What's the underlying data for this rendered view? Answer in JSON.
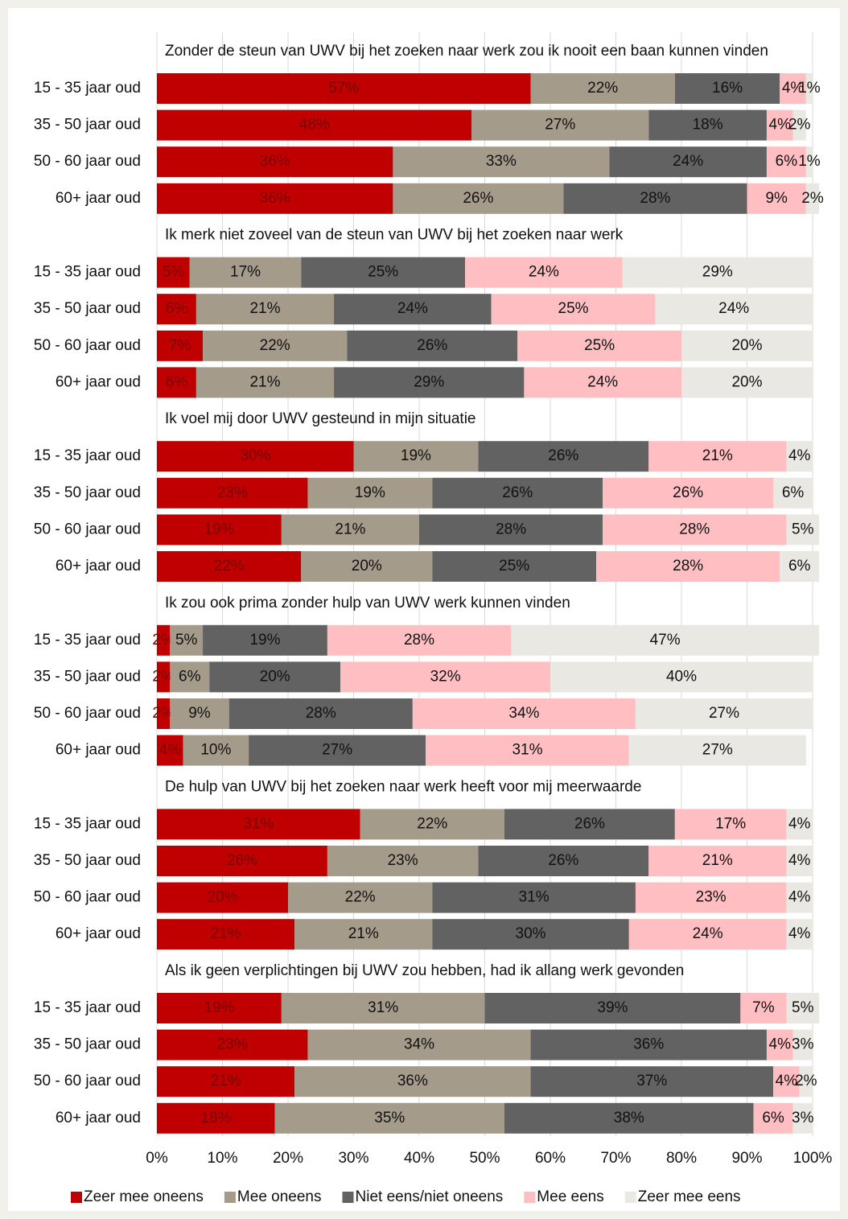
{
  "chart_data": {
    "type": "bar",
    "orientation": "horizontal",
    "stacked": true,
    "xlim": [
      0,
      100
    ],
    "xticks": [
      {
        "value": 0,
        "label": "0%"
      },
      {
        "value": 10,
        "label": "10%"
      },
      {
        "value": 20,
        "label": "20%"
      },
      {
        "value": 30,
        "label": "30%"
      },
      {
        "value": 40,
        "label": "40%"
      },
      {
        "value": 50,
        "label": "50%"
      },
      {
        "value": 60,
        "label": "60%"
      },
      {
        "value": 70,
        "label": "70%"
      },
      {
        "value": 80,
        "label": "80%"
      },
      {
        "value": 90,
        "label": "90%"
      },
      {
        "value": 100,
        "label": "100%"
      }
    ],
    "grid": true,
    "legend": "bottom",
    "series": [
      {
        "name": "Zeer mee oneens",
        "color": "#c00000"
      },
      {
        "name": "Mee oneens",
        "color": "#a59b8a"
      },
      {
        "name": "Niet eens/niet oneens",
        "color": "#626262"
      },
      {
        "name": "Mee eens",
        "color": "#ffbfc2"
      },
      {
        "name": "Zeer mee eens",
        "color": "#eae8e3"
      }
    ],
    "panels": [
      {
        "title": "Zonder de steun van UWV bij het zoeken naar werk zou ik nooit een baan kunnen vinden",
        "categories": [
          "15 - 35 jaar oud",
          "35 - 50 jaar oud",
          "50 - 60 jaar oud",
          "60+ jaar oud"
        ],
        "values": [
          [
            57,
            22,
            16,
            4,
            1
          ],
          [
            48,
            27,
            18,
            4,
            2
          ],
          [
            36,
            33,
            24,
            6,
            1
          ],
          [
            36,
            26,
            28,
            9,
            2
          ]
        ],
        "value_labels": [
          [
            "57%",
            "22%",
            "16%",
            "4%",
            "1%"
          ],
          [
            "48%",
            "27%",
            "18%",
            "4%",
            "2%"
          ],
          [
            "36%",
            "33%",
            "24%",
            "6%",
            "1%"
          ],
          [
            "36%",
            "26%",
            "28%",
            "9%",
            "2%"
          ]
        ]
      },
      {
        "title": "Ik merk niet zoveel van de steun van UWV bij het zoeken naar werk",
        "categories": [
          "15 - 35 jaar oud",
          "35 - 50 jaar oud",
          "50 - 60 jaar oud",
          "60+ jaar oud"
        ],
        "values": [
          [
            5,
            17,
            25,
            24,
            29
          ],
          [
            6,
            21,
            24,
            25,
            24
          ],
          [
            7,
            22,
            26,
            25,
            20
          ],
          [
            6,
            21,
            29,
            24,
            20
          ]
        ],
        "value_labels": [
          [
            "5%",
            "17%",
            "25%",
            "24%",
            "29%"
          ],
          [
            "6%",
            "21%",
            "24%",
            "25%",
            "24%"
          ],
          [
            "7%",
            "22%",
            "26%",
            "25%",
            "20%"
          ],
          [
            "6%",
            "21%",
            "29%",
            "24%",
            "20%"
          ]
        ]
      },
      {
        "title": "Ik voel mij door UWV gesteund in mijn situatie",
        "categories": [
          "15 - 35 jaar oud",
          "35 - 50 jaar oud",
          "50 - 60 jaar oud",
          "60+ jaar oud"
        ],
        "values": [
          [
            30,
            19,
            26,
            21,
            4
          ],
          [
            23,
            19,
            26,
            26,
            6
          ],
          [
            19,
            21,
            28,
            28,
            5
          ],
          [
            22,
            20,
            25,
            28,
            6
          ]
        ],
        "value_labels": [
          [
            "30%",
            "19%",
            "26%",
            "21%",
            "4%"
          ],
          [
            "23%",
            "19%",
            "26%",
            "26%",
            "6%"
          ],
          [
            "19%",
            "21%",
            "28%",
            "28%",
            "5%"
          ],
          [
            "22%",
            "20%",
            "25%",
            "28%",
            "6%"
          ]
        ]
      },
      {
        "title": "Ik zou ook prima zonder hulp van UWV werk kunnen vinden",
        "categories": [
          "15 - 35 jaar oud",
          "35 - 50 jaar oud",
          "50 - 60 jaar oud",
          "60+ jaar oud"
        ],
        "values": [
          [
            2,
            5,
            19,
            28,
            47
          ],
          [
            2,
            6,
            20,
            32,
            40
          ],
          [
            2,
            9,
            28,
            34,
            27
          ],
          [
            4,
            10,
            27,
            31,
            27
          ]
        ],
        "value_labels": [
          [
            "2%",
            "5%",
            "19%",
            "28%",
            "47%"
          ],
          [
            "2%",
            "6%",
            "20%",
            "32%",
            "40%"
          ],
          [
            "2%",
            "9%",
            "28%",
            "34%",
            "27%"
          ],
          [
            "4%",
            "10%",
            "27%",
            "31%",
            "27%"
          ]
        ]
      },
      {
        "title": "De hulp van UWV bij het zoeken naar werk heeft voor mij meerwaarde",
        "categories": [
          "15 - 35 jaar oud",
          "35 - 50 jaar oud",
          "50 - 60 jaar oud",
          "60+ jaar oud"
        ],
        "values": [
          [
            31,
            22,
            26,
            17,
            4
          ],
          [
            26,
            23,
            26,
            21,
            4
          ],
          [
            20,
            22,
            31,
            23,
            4
          ],
          [
            21,
            21,
            30,
            24,
            4
          ]
        ],
        "value_labels": [
          [
            "31%",
            "22%",
            "26%",
            "17%",
            "4%"
          ],
          [
            "26%",
            "23%",
            "26%",
            "21%",
            "4%"
          ],
          [
            "20%",
            "22%",
            "31%",
            "23%",
            "4%"
          ],
          [
            "21%",
            "21%",
            "30%",
            "24%",
            "4%"
          ]
        ]
      },
      {
        "title": "Als ik geen verplichtingen bij UWV zou hebben, had ik allang werk gevonden",
        "categories": [
          "15 - 35 jaar oud",
          "35 - 50 jaar oud",
          "50 - 60 jaar oud",
          "60+ jaar oud"
        ],
        "values": [
          [
            19,
            31,
            39,
            7,
            5
          ],
          [
            23,
            34,
            36,
            4,
            3
          ],
          [
            21,
            36,
            37,
            4,
            2
          ],
          [
            18,
            35,
            38,
            6,
            3
          ]
        ],
        "value_labels": [
          [
            "19%",
            "31%",
            "39%",
            "7%",
            "5%"
          ],
          [
            "23%",
            "34%",
            "36%",
            "4%",
            "3%"
          ],
          [
            "21%",
            "36%",
            "37%",
            "4%",
            "2%"
          ],
          [
            "18%",
            "35%",
            "38%",
            "6%",
            "3%"
          ]
        ]
      }
    ]
  }
}
